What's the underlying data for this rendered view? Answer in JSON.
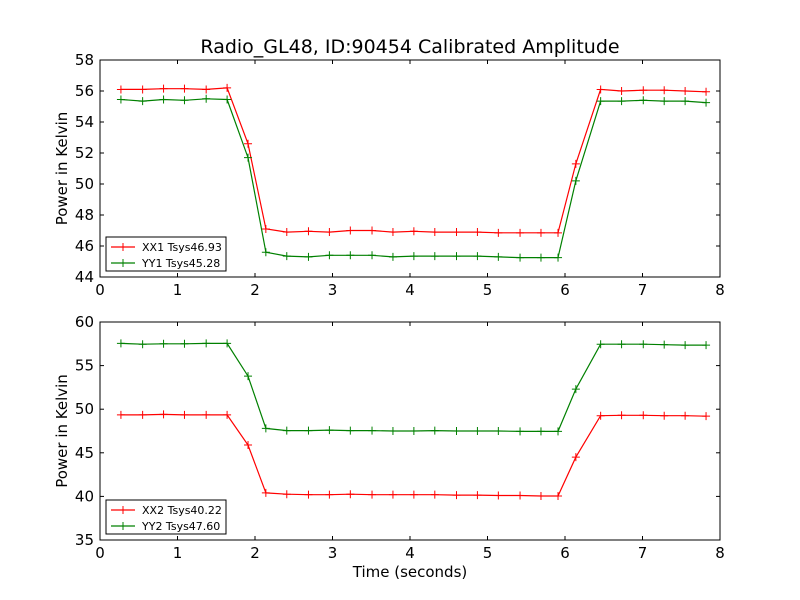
{
  "figure": {
    "title": "Radio_GL48, ID:90454 Calibrated Amplitude"
  },
  "chart_data": [
    {
      "type": "line",
      "title": "Radio_GL48, ID:90454 Calibrated Amplitude",
      "xlabel": "",
      "ylabel": "Power in Kelvin",
      "xlim": [
        0,
        8
      ],
      "ylim": [
        44,
        58
      ],
      "xticks": [
        0,
        1,
        2,
        3,
        4,
        5,
        6,
        7,
        8
      ],
      "yticks": [
        44,
        46,
        48,
        50,
        52,
        54,
        56,
        58
      ],
      "grid": false,
      "legend": "lower-left",
      "x": [
        0.27,
        0.55,
        0.82,
        1.09,
        1.37,
        1.64,
        1.91,
        2.14,
        2.41,
        2.69,
        2.96,
        3.23,
        3.51,
        3.78,
        4.05,
        4.32,
        4.6,
        4.87,
        5.14,
        5.42,
        5.69,
        5.91,
        6.14,
        6.46,
        6.73,
        7.01,
        7.28,
        7.55,
        7.82
      ],
      "series": [
        {
          "name": "XX1 Tsys46.93",
          "color": "#ff0000",
          "values": [
            56.1,
            56.1,
            56.15,
            56.15,
            56.1,
            56.2,
            52.6,
            47.1,
            46.9,
            46.95,
            46.9,
            47.0,
            47.0,
            46.9,
            46.95,
            46.9,
            46.9,
            46.9,
            46.85,
            46.85,
            46.85,
            46.85,
            51.3,
            56.1,
            56.0,
            56.05,
            56.05,
            56.0,
            55.95
          ]
        },
        {
          "name": "YY1 Tsys45.28",
          "color": "#008000",
          "values": [
            55.45,
            55.35,
            55.45,
            55.4,
            55.5,
            55.45,
            51.7,
            45.6,
            45.35,
            45.3,
            45.4,
            45.4,
            45.4,
            45.3,
            45.35,
            45.35,
            45.35,
            45.35,
            45.3,
            45.25,
            45.25,
            45.25,
            50.2,
            55.35,
            55.35,
            55.4,
            55.35,
            55.35,
            55.25
          ]
        }
      ]
    },
    {
      "type": "line",
      "title": "",
      "xlabel": "Time (seconds)",
      "ylabel": "Power in Kelvin",
      "xlim": [
        0,
        8
      ],
      "ylim": [
        35,
        60
      ],
      "xticks": [
        0,
        1,
        2,
        3,
        4,
        5,
        6,
        7,
        8
      ],
      "yticks": [
        35,
        40,
        45,
        50,
        55,
        60
      ],
      "grid": false,
      "legend": "lower-left",
      "x": [
        0.27,
        0.55,
        0.82,
        1.09,
        1.37,
        1.64,
        1.91,
        2.14,
        2.41,
        2.69,
        2.96,
        3.23,
        3.51,
        3.78,
        4.05,
        4.32,
        4.6,
        4.87,
        5.14,
        5.42,
        5.69,
        5.91,
        6.14,
        6.46,
        6.73,
        7.01,
        7.28,
        7.55,
        7.82
      ],
      "series": [
        {
          "name": "XX2 Tsys40.22",
          "color": "#ff0000",
          "values": [
            49.35,
            49.35,
            49.4,
            49.35,
            49.35,
            49.35,
            45.9,
            40.4,
            40.25,
            40.2,
            40.2,
            40.25,
            40.2,
            40.2,
            40.2,
            40.2,
            40.15,
            40.15,
            40.1,
            40.1,
            40.05,
            40.05,
            44.5,
            49.25,
            49.3,
            49.3,
            49.25,
            49.25,
            49.2
          ]
        },
        {
          "name": "YY2 Tsys47.60",
          "color": "#008000",
          "values": [
            57.55,
            57.45,
            57.5,
            57.5,
            57.55,
            57.55,
            53.8,
            47.8,
            47.55,
            47.55,
            47.6,
            47.55,
            47.55,
            47.5,
            47.5,
            47.55,
            47.5,
            47.5,
            47.5,
            47.45,
            47.45,
            47.45,
            52.3,
            57.45,
            57.45,
            57.45,
            57.4,
            57.35,
            57.35
          ]
        }
      ]
    }
  ]
}
